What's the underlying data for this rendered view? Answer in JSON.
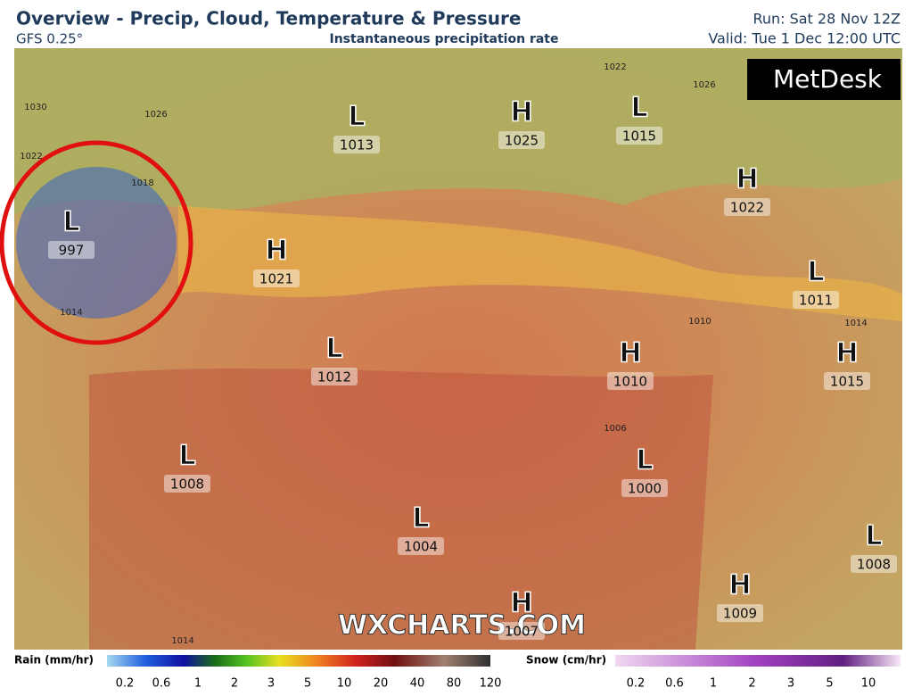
{
  "header": {
    "title": "Overview - Precip, Cloud, Temperature & Pressure",
    "model": "GFS 0.25°",
    "subtitle": "Instantaneous precipitation rate",
    "run": "Run: Sat 28 Nov 12Z",
    "valid": "Valid: Tue 1 Dec 12:00 UTC"
  },
  "logo": "MetDesk",
  "watermark": "WXCHARTS.COM",
  "pressure_systems": [
    {
      "symbol": "L",
      "value": 997
    },
    {
      "symbol": "H",
      "value": 1021
    },
    {
      "symbol": "L",
      "value": 1013
    },
    {
      "symbol": "H",
      "value": 1025
    },
    {
      "symbol": "L",
      "value": 1015
    },
    {
      "symbol": "H",
      "value": 1022
    },
    {
      "symbol": "L",
      "value": 1011
    },
    {
      "symbol": "L",
      "value": 1012
    },
    {
      "symbol": "H",
      "value": 1010
    },
    {
      "symbol": "H",
      "value": 1015
    },
    {
      "symbol": "L",
      "value": 1008
    },
    {
      "symbol": "L",
      "value": 1000
    },
    {
      "symbol": "L",
      "value": 1004
    },
    {
      "symbol": "L",
      "value": 1008
    },
    {
      "symbol": "H",
      "value": 1009
    },
    {
      "symbol": "H",
      "value": 1007
    }
  ],
  "isobar_labels": [
    1030,
    1026,
    1022,
    1018,
    1014,
    1026,
    1022,
    1010,
    1006,
    1014,
    1014
  ],
  "legend": {
    "rain": {
      "label": "Rain (mm/hr)",
      "ticks": [
        "0.2",
        "0.6",
        "1",
        "2",
        "3",
        "5",
        "10",
        "20",
        "40",
        "80",
        "120"
      ]
    },
    "snow": {
      "label": "Snow (cm/hr)",
      "ticks": [
        "0.2",
        "0.6",
        "1",
        "2",
        "3",
        "5",
        "10"
      ]
    }
  }
}
